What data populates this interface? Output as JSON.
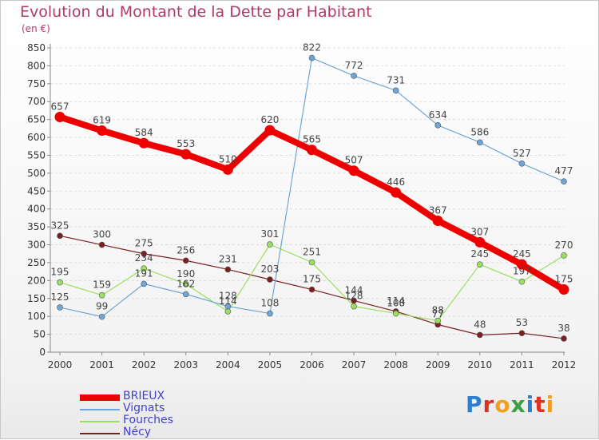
{
  "title": "Evolution du Montant de la Dette par Habitant",
  "subtitle": "(en €)",
  "logo": "Proxiti",
  "colors": {
    "title": "#b03a6a",
    "grid": "#dddddd",
    "axis": "#888888"
  },
  "chart_data": {
    "type": "line",
    "title": "Evolution du Montant de la Dette par Habitant",
    "subtitle": "(en €)",
    "ylim": [
      0,
      850
    ],
    "yticks": [
      0,
      50,
      100,
      150,
      200,
      250,
      300,
      350,
      400,
      450,
      500,
      550,
      600,
      650,
      700,
      750,
      800,
      850
    ],
    "x": [
      "2000",
      "2001",
      "2002",
      "2003",
      "2004",
      "2005",
      "2006",
      "2007",
      "2008",
      "2009",
      "2010",
      "2011",
      "2012"
    ],
    "grid": "horizontal dashed",
    "legend_position": "bottom-left",
    "series": [
      {
        "name": "BRIEUX",
        "color": "#ee0000",
        "width": 8,
        "marker": 6.5,
        "values": [
          657,
          619,
          584,
          553,
          510,
          620,
          565,
          507,
          446,
          367,
          307,
          245,
          175
        ],
        "labels": [
          "657",
          "619",
          "584",
          "553",
          "510",
          "620",
          "565",
          "507",
          "446",
          "367",
          "307",
          "245",
          "175"
        ]
      },
      {
        "name": "Vignats",
        "color": "#6fa6d8",
        "width": 1.2,
        "marker": 3.5,
        "values": [
          125,
          99,
          191,
          162,
          128,
          108,
          822,
          772,
          731,
          634,
          586,
          527,
          477
        ],
        "labels": [
          "125",
          "99",
          "191",
          "162",
          "128",
          "108",
          "822",
          "772",
          "731",
          "634",
          "586",
          "527",
          "477"
        ]
      },
      {
        "name": "Fourches",
        "color": "#99e060",
        "width": 1.2,
        "marker": 3.5,
        "values": [
          195,
          159,
          234,
          190,
          114,
          301,
          251,
          128,
          108,
          88,
          245,
          197,
          270
        ],
        "labels": [
          "195",
          "159",
          "234",
          "190",
          "114",
          "301",
          "251",
          "128",
          "108",
          "88",
          "245",
          "197",
          "270"
        ]
      },
      {
        "name": "Nécy",
        "color": "#7a2020",
        "width": 1.2,
        "marker": 3.5,
        "values": [
          325,
          300,
          275,
          256,
          231,
          203,
          175,
          144,
          114,
          77,
          48,
          53,
          38
        ],
        "labels": [
          "325",
          "300",
          "275",
          "256",
          "231",
          "203",
          "175",
          "144",
          "114",
          "77",
          "48",
          "53",
          "38"
        ]
      }
    ]
  }
}
